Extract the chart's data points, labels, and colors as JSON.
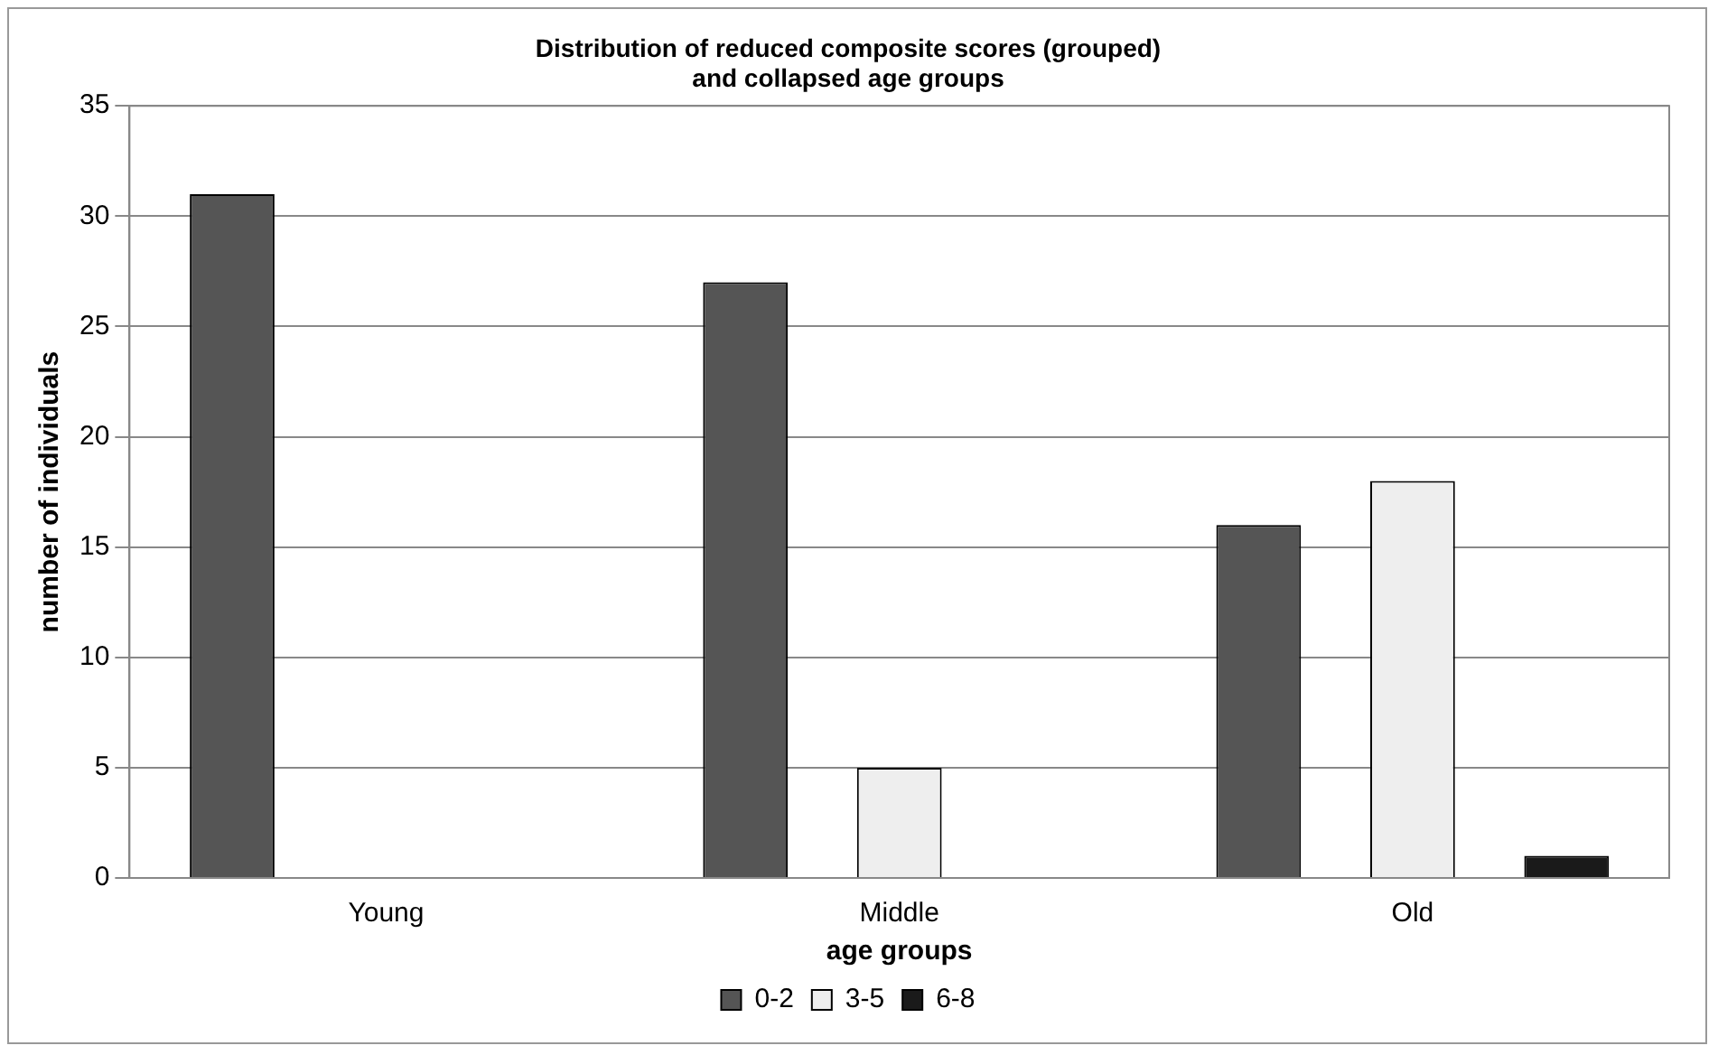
{
  "chart_data": {
    "type": "bar",
    "title": [
      "Distribution of reduced composite scores (grouped)",
      "and collapsed age groups"
    ],
    "xlabel": "age groups",
    "ylabel": "number of individuals",
    "categories": [
      "Young",
      "Middle",
      "Old"
    ],
    "series": [
      {
        "name": "0-2",
        "color": "#555555",
        "values": [
          31,
          27,
          16
        ]
      },
      {
        "name": "3-5",
        "color": "#eeeeee",
        "values": [
          0,
          5,
          18
        ]
      },
      {
        "name": "6-8",
        "color": "#1a1a1a",
        "values": [
          0,
          0,
          1
        ]
      }
    ],
    "ylim": [
      0,
      35
    ],
    "yticks": [
      0,
      5,
      10,
      15,
      20,
      25,
      30,
      35
    ],
    "grid": "y",
    "legend": "bottom"
  }
}
